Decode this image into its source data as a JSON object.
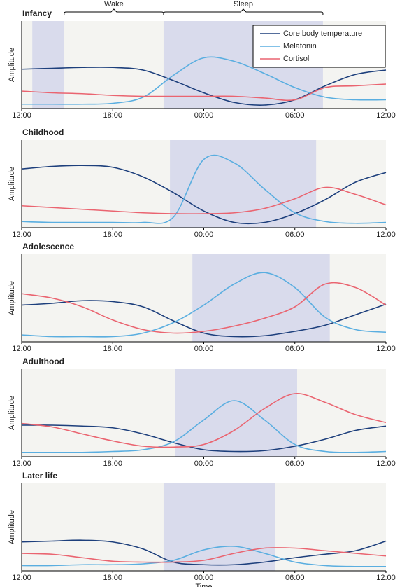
{
  "chart_data": [
    {
      "type": "line",
      "title": "Infancy",
      "ylabel": "Amplitude",
      "legend": "upper right",
      "annotations": [
        "Wake",
        "Sleep"
      ],
      "x": [
        0,
        2,
        4,
        6,
        8,
        10,
        12,
        14,
        16,
        18,
        20,
        22,
        24
      ],
      "xlim": [
        0,
        24
      ],
      "xticks": [
        {
          "value": 0,
          "label": "12:00"
        },
        {
          "value": 6,
          "label": "18:00"
        },
        {
          "value": 12,
          "label": "00:00"
        },
        {
          "value": 18,
          "label": "06:00"
        },
        {
          "value": 24,
          "label": "12:00"
        }
      ],
      "ylim": [
        0,
        1
      ],
      "shaded": [
        [
          0.7,
          2.8
        ],
        [
          9.35,
          19.85
        ]
      ],
      "series": [
        {
          "name": "Core body temperature",
          "color": "#1d3f7c",
          "values": [
            0.45,
            0.46,
            0.47,
            0.47,
            0.44,
            0.32,
            0.18,
            0.07,
            0.04,
            0.1,
            0.26,
            0.39,
            0.44
          ]
        },
        {
          "name": "Melatonin",
          "color": "#5aaee0",
          "values": [
            0.05,
            0.05,
            0.05,
            0.06,
            0.13,
            0.38,
            0.58,
            0.54,
            0.4,
            0.24,
            0.13,
            0.1,
            0.1
          ]
        },
        {
          "name": "Cortisol",
          "color": "#ea6470",
          "values": [
            0.2,
            0.18,
            0.17,
            0.15,
            0.14,
            0.14,
            0.14,
            0.14,
            0.12,
            0.1,
            0.24,
            0.26,
            0.28
          ]
        }
      ]
    },
    {
      "type": "line",
      "title": "Childhood",
      "ylabel": "Amplitude",
      "x": [
        0,
        2,
        4,
        6,
        8,
        10,
        12,
        14,
        16,
        18,
        20,
        22,
        24
      ],
      "xlim": [
        0,
        24
      ],
      "xticks": [
        {
          "value": 0,
          "label": "12:00"
        },
        {
          "value": 6,
          "label": "18:00"
        },
        {
          "value": 12,
          "label": "00:00"
        },
        {
          "value": 18,
          "label": "06:00"
        },
        {
          "value": 24,
          "label": "12:00"
        }
      ],
      "ylim": [
        0,
        1
      ],
      "shaded": [
        [
          9.77,
          19.4
        ]
      ],
      "series": [
        {
          "color": "#1d3f7c",
          "values": [
            0.67,
            0.7,
            0.71,
            0.69,
            0.58,
            0.4,
            0.19,
            0.06,
            0.06,
            0.16,
            0.32,
            0.52,
            0.63
          ]
        },
        {
          "color": "#5aaee0",
          "values": [
            0.07,
            0.06,
            0.06,
            0.06,
            0.06,
            0.12,
            0.78,
            0.74,
            0.44,
            0.17,
            0.07,
            0.05,
            0.06
          ]
        },
        {
          "color": "#ea6470",
          "values": [
            0.25,
            0.23,
            0.21,
            0.19,
            0.17,
            0.16,
            0.16,
            0.17,
            0.22,
            0.33,
            0.46,
            0.38,
            0.26
          ]
        }
      ]
    },
    {
      "type": "line",
      "title": "Adolescence",
      "ylabel": "Amplitude",
      "x": [
        0,
        2,
        4,
        6,
        8,
        10,
        12,
        14,
        16,
        18,
        20,
        22,
        24
      ],
      "xlim": [
        0,
        24
      ],
      "xticks": [
        {
          "value": 0,
          "label": "12:00"
        },
        {
          "value": 6,
          "label": "18:00"
        },
        {
          "value": 12,
          "label": "00:00"
        },
        {
          "value": 18,
          "label": "06:00"
        },
        {
          "value": 24,
          "label": "12:00"
        }
      ],
      "ylim": [
        0,
        1
      ],
      "shaded": [
        [
          11.25,
          20.3
        ]
      ],
      "series": [
        {
          "color": "#1d3f7c",
          "values": [
            0.42,
            0.44,
            0.47,
            0.46,
            0.4,
            0.24,
            0.1,
            0.06,
            0.07,
            0.12,
            0.19,
            0.31,
            0.43
          ]
        },
        {
          "color": "#5aaee0",
          "values": [
            0.08,
            0.06,
            0.06,
            0.06,
            0.1,
            0.22,
            0.42,
            0.66,
            0.79,
            0.62,
            0.28,
            0.14,
            0.11
          ]
        },
        {
          "color": "#ea6470",
          "values": [
            0.55,
            0.5,
            0.4,
            0.25,
            0.14,
            0.1,
            0.12,
            0.18,
            0.27,
            0.4,
            0.66,
            0.62,
            0.42
          ]
        }
      ]
    },
    {
      "type": "line",
      "title": "Adulthood",
      "ylabel": "Amplitude",
      "x": [
        0,
        2,
        4,
        6,
        8,
        10,
        12,
        14,
        16,
        18,
        20,
        22,
        24
      ],
      "xlim": [
        0,
        24
      ],
      "xticks": [
        {
          "value": 0,
          "label": "12:00"
        },
        {
          "value": 6,
          "label": "18:00"
        },
        {
          "value": 12,
          "label": "00:00"
        },
        {
          "value": 18,
          "label": "06:00"
        },
        {
          "value": 24,
          "label": "12:00"
        }
      ],
      "ylim": [
        0,
        1
      ],
      "shaded": [
        [
          10.1,
          18.15
        ]
      ],
      "series": [
        {
          "color": "#1d3f7c",
          "values": [
            0.36,
            0.36,
            0.35,
            0.33,
            0.26,
            0.16,
            0.08,
            0.06,
            0.07,
            0.12,
            0.2,
            0.3,
            0.35
          ]
        },
        {
          "color": "#5aaee0",
          "values": [
            0.05,
            0.05,
            0.05,
            0.06,
            0.08,
            0.17,
            0.42,
            0.64,
            0.42,
            0.14,
            0.06,
            0.05,
            0.06
          ]
        },
        {
          "color": "#ea6470",
          "values": [
            0.38,
            0.34,
            0.26,
            0.18,
            0.12,
            0.11,
            0.14,
            0.3,
            0.55,
            0.72,
            0.62,
            0.48,
            0.39
          ]
        }
      ]
    },
    {
      "type": "line",
      "title": "Later life",
      "ylabel": "Amplitude",
      "xlabel": "Time",
      "x": [
        0,
        2,
        4,
        6,
        8,
        10,
        12,
        14,
        16,
        18,
        20,
        22,
        24
      ],
      "xlim": [
        0,
        24
      ],
      "xticks": [
        {
          "value": 0,
          "label": "12:00"
        },
        {
          "value": 6,
          "label": "18:00"
        },
        {
          "value": 12,
          "label": "00:00"
        },
        {
          "value": 18,
          "label": "06:00"
        },
        {
          "value": 24,
          "label": "12:00"
        }
      ],
      "ylim": [
        0,
        1
      ],
      "shaded": [
        [
          9.35,
          16.7
        ]
      ],
      "series": [
        {
          "color": "#1d3f7c",
          "values": [
            0.33,
            0.34,
            0.35,
            0.33,
            0.25,
            0.1,
            0.07,
            0.07,
            0.1,
            0.15,
            0.19,
            0.23,
            0.34
          ]
        },
        {
          "color": "#5aaee0",
          "values": [
            0.06,
            0.06,
            0.07,
            0.07,
            0.08,
            0.12,
            0.24,
            0.28,
            0.2,
            0.1,
            0.06,
            0.05,
            0.05
          ]
        },
        {
          "color": "#ea6470",
          "values": [
            0.2,
            0.19,
            0.15,
            0.11,
            0.1,
            0.1,
            0.12,
            0.2,
            0.26,
            0.26,
            0.23,
            0.2,
            0.17
          ]
        }
      ]
    }
  ]
}
